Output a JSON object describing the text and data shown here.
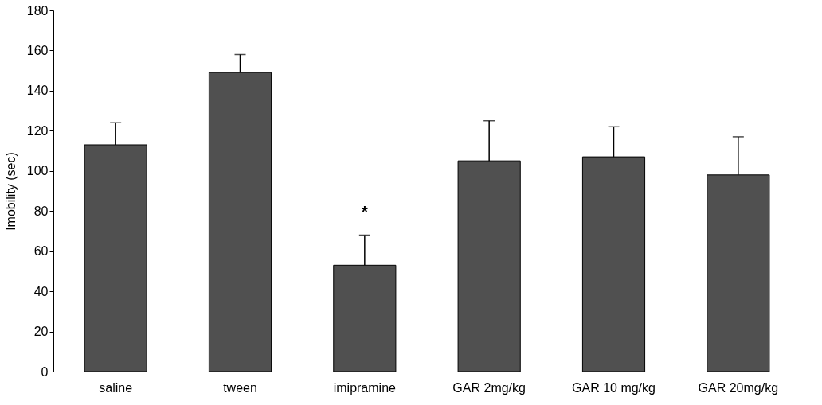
{
  "chart_data": {
    "type": "bar",
    "ylabel": "Imobility (sec)",
    "categories": [
      "saline",
      "tween",
      "imipramine",
      "GAR 2mg/kg",
      "GAR 10 mg/kg",
      "GAR 20mg/kg"
    ],
    "values": [
      113,
      149,
      53,
      105,
      107,
      98
    ],
    "errors": [
      [
        113,
        124
      ],
      [
        149,
        158
      ],
      [
        53,
        68
      ],
      [
        105,
        125
      ],
      [
        107,
        122
      ],
      [
        98,
        117
      ]
    ],
    "color": "#505050",
    "ylim": [
      0,
      180
    ],
    "yticks": [
      0,
      20,
      40,
      60,
      80,
      100,
      120,
      140,
      160,
      180
    ],
    "grid": false,
    "annotations": [
      {
        "text": "*",
        "x": "imipramine",
        "y": 68
      }
    ]
  }
}
